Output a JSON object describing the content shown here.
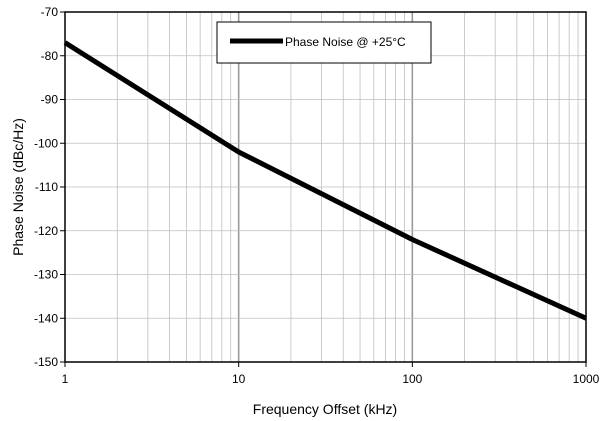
{
  "chart_data": {
    "type": "line",
    "title": "",
    "xlabel": "Frequency Offset (kHz)",
    "ylabel": "Phase Noise (dBc/Hz)",
    "x_scale": "log",
    "xlim": [
      1,
      1000
    ],
    "ylim": [
      -150,
      -70
    ],
    "x_ticks": [
      1,
      10,
      100,
      1000
    ],
    "x_tick_labels": [
      "1",
      "10",
      "100",
      "1000"
    ],
    "y_ticks": [
      -70,
      -80,
      -90,
      -100,
      -110,
      -120,
      -130,
      -140,
      -150
    ],
    "y_tick_labels": [
      "-70",
      "-80",
      "-90",
      "-100",
      "-110",
      "-120",
      "-130",
      "-140",
      "-150"
    ],
    "grid": true,
    "legend_position": "top-center",
    "series": [
      {
        "name": "Phase Noise @ +25°C",
        "color": "#000000",
        "x": [
          1,
          10,
          100,
          1000
        ],
        "y": [
          -77,
          -102,
          -122,
          -140
        ]
      }
    ]
  }
}
